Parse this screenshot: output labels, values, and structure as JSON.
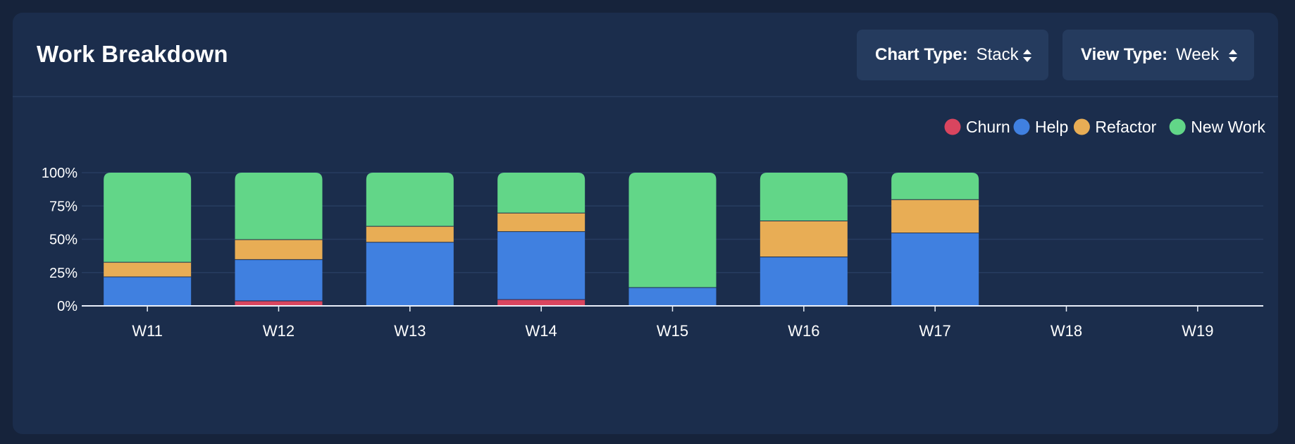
{
  "header": {
    "title": "Work Breakdown",
    "chart_type_label": "Chart Type:",
    "chart_type_value": "Stack",
    "view_type_label": "View Type:",
    "view_type_value": "Week"
  },
  "colors": {
    "background": "#16233b",
    "card": "#1b2d4c",
    "grid": "#273d60",
    "axis": "#e8eef8",
    "text": "#ffffff"
  },
  "chart_data": {
    "type": "bar",
    "stacked": true,
    "categories": [
      "W11",
      "W12",
      "W13",
      "W14",
      "W15",
      "W16",
      "W17",
      "W18",
      "W19"
    ],
    "series": [
      {
        "name": "Churn",
        "color": "#d9455f",
        "values": [
          0,
          4,
          0,
          5,
          0,
          0,
          0,
          0,
          0
        ]
      },
      {
        "name": "Help",
        "color": "#4080e0",
        "values": [
          22,
          31,
          48,
          51,
          14,
          37,
          55,
          0,
          0
        ]
      },
      {
        "name": "Refactor",
        "color": "#e8ad55",
        "values": [
          11,
          15,
          12,
          14,
          0,
          27,
          25,
          0,
          0
        ]
      },
      {
        "name": "New Work",
        "color": "#62d688",
        "values": [
          67,
          50,
          40,
          30,
          86,
          36,
          20,
          0,
          0
        ]
      }
    ],
    "yticks": [
      "0%",
      "25%",
      "50%",
      "75%",
      "100%"
    ],
    "ylim": [
      0,
      100
    ],
    "legend_position": "top-right",
    "grid": true
  }
}
